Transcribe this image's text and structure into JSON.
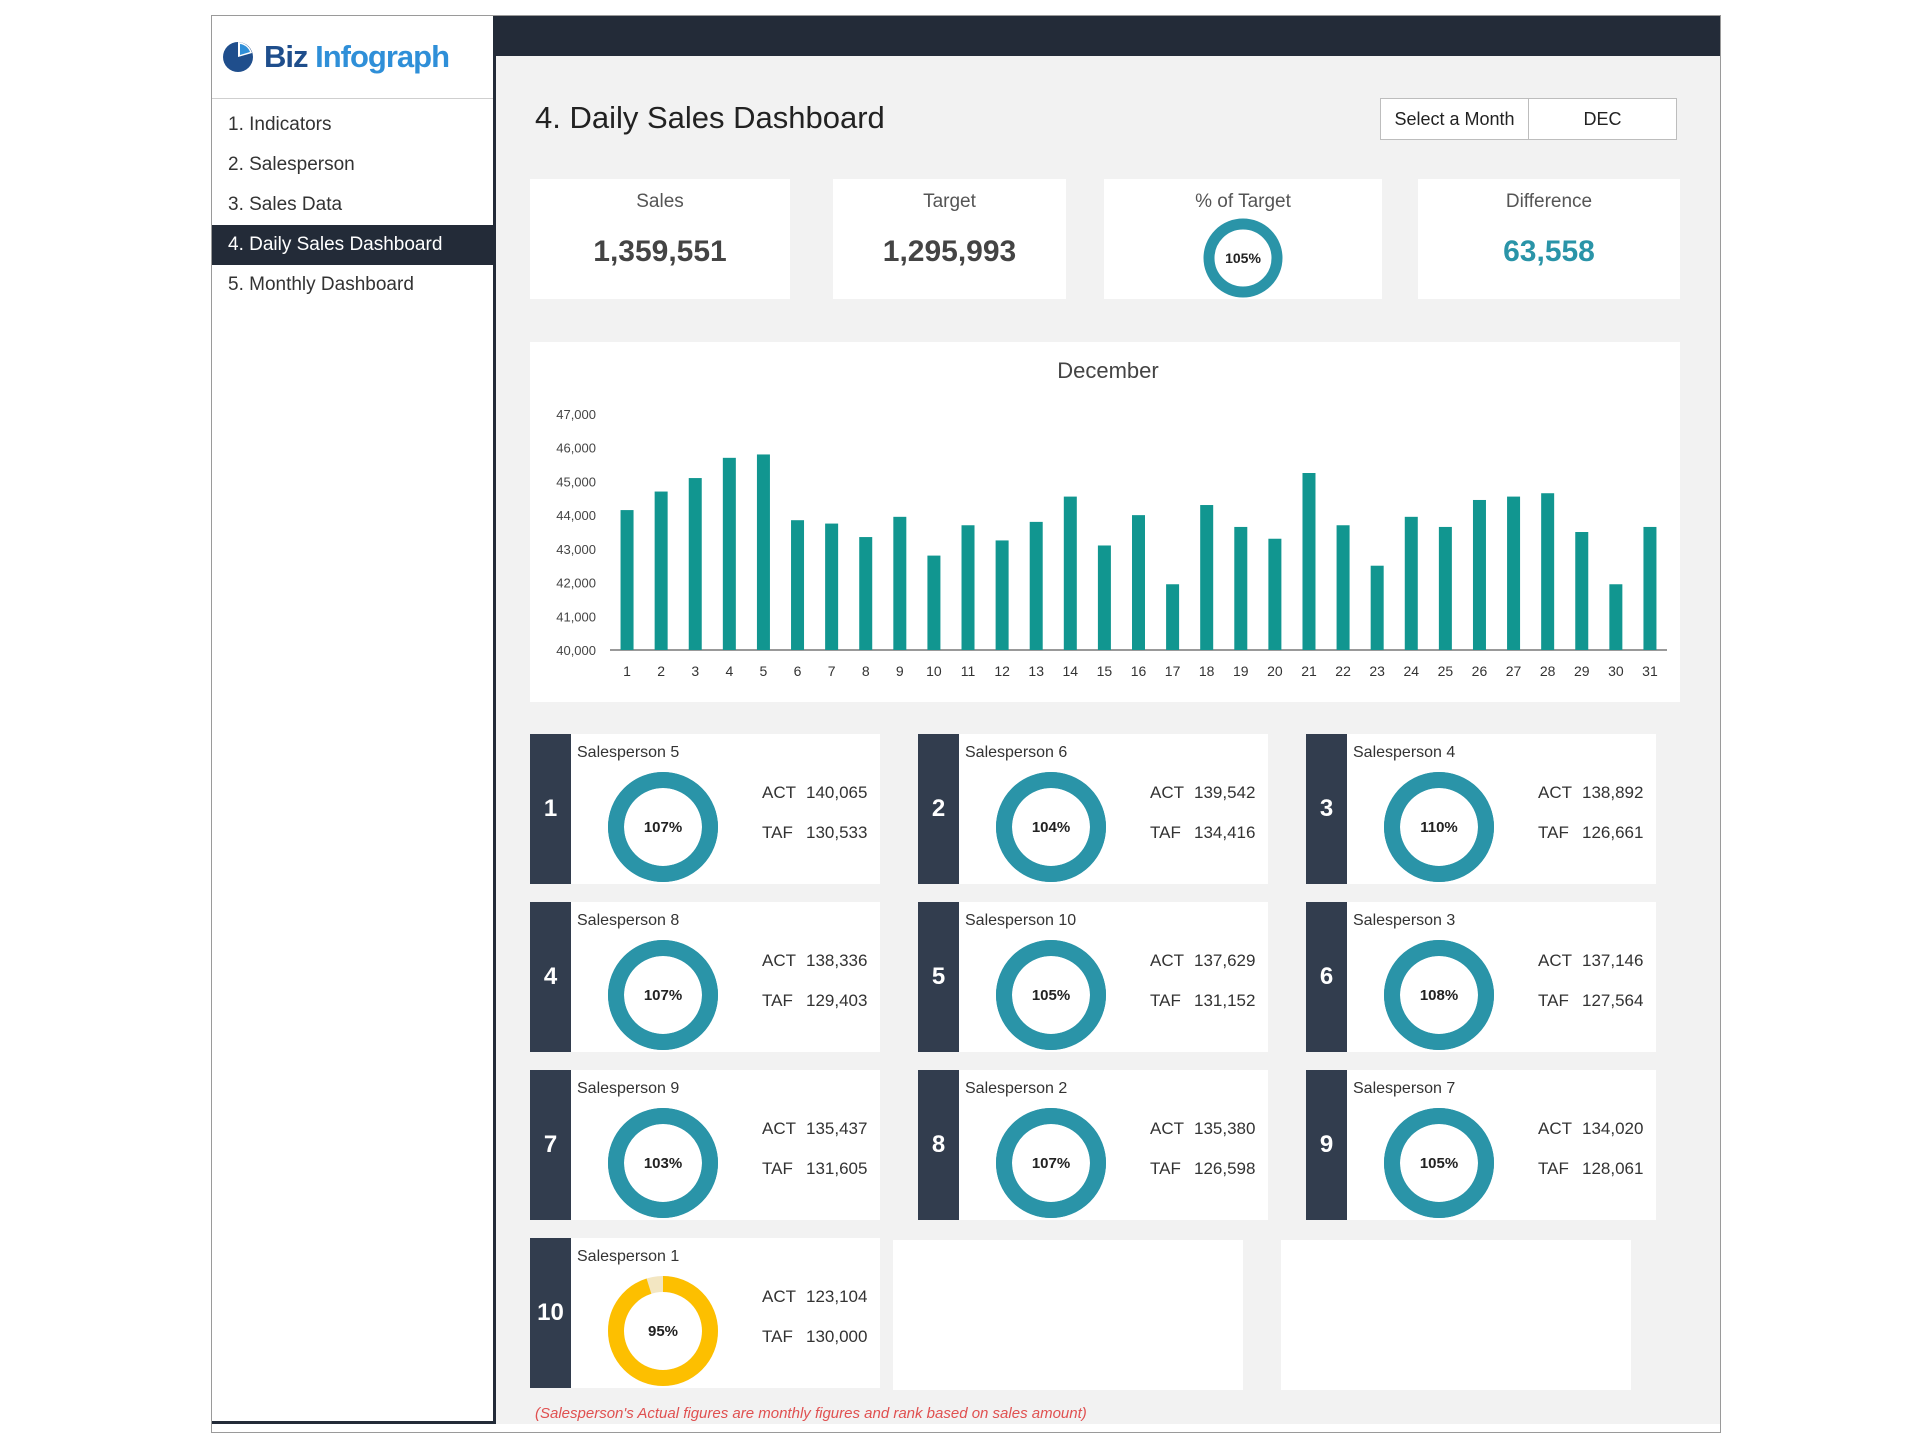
{
  "logo": {
    "brand": "Biz",
    "accent": "Infograph"
  },
  "nav": [
    {
      "label": "1. Indicators"
    },
    {
      "label": "2. Salesperson"
    },
    {
      "label": "3. Sales Data"
    },
    {
      "label": "4. Daily Sales Dashboard",
      "active": true
    },
    {
      "label": "5. Monthly Dashboard"
    }
  ],
  "page": {
    "title": "4. Daily Sales Dashboard"
  },
  "month_select": {
    "label": "Select a Month",
    "value": "DEC"
  },
  "kpis": {
    "sales": {
      "label": "Sales",
      "value": "1,359,551"
    },
    "target": {
      "label": "Target",
      "value": "1,295,993"
    },
    "pct_target": {
      "label": "% of Target",
      "value": "105%",
      "pct": 105
    },
    "difference": {
      "label": "Difference",
      "value": "63,558"
    }
  },
  "colors": {
    "teal": "#2a94a8",
    "bar": "#119690",
    "dark": "#232b38",
    "rank": "#323d4e",
    "yellow": "#fdbf00",
    "track": "#f3e6c2"
  },
  "chart_data": {
    "type": "bar",
    "title": "December",
    "categories": [
      "1",
      "2",
      "3",
      "4",
      "5",
      "6",
      "7",
      "8",
      "9",
      "10",
      "11",
      "12",
      "13",
      "14",
      "15",
      "16",
      "17",
      "18",
      "19",
      "20",
      "21",
      "22",
      "23",
      "24",
      "25",
      "26",
      "27",
      "28",
      "29",
      "30",
      "31"
    ],
    "values": [
      44150,
      44700,
      45100,
      45700,
      45800,
      43850,
      43750,
      43350,
      43950,
      42800,
      43700,
      43250,
      43800,
      44550,
      43100,
      44000,
      41950,
      44300,
      43650,
      43300,
      45250,
      43700,
      42500,
      43950,
      43650,
      44450,
      44550,
      44650,
      43500,
      41950,
      43650
    ],
    "ylim": [
      40000,
      47000
    ],
    "yticks": [
      "40,000",
      "41,000",
      "42,000",
      "43,000",
      "44,000",
      "45,000",
      "46,000",
      "47,000"
    ],
    "xlabel": "",
    "ylabel": "",
    "grid": false
  },
  "salespeople": [
    {
      "rank": "1",
      "name": "Salesperson 5",
      "pct_label": "107%",
      "pct": 107,
      "act_label": "ACT",
      "act": "140,065",
      "taf_label": "TAF",
      "taf": "130,533"
    },
    {
      "rank": "2",
      "name": "Salesperson 6",
      "pct_label": "104%",
      "pct": 104,
      "act_label": "ACT",
      "act": "139,542",
      "taf_label": "TAF",
      "taf": "134,416"
    },
    {
      "rank": "3",
      "name": "Salesperson 4",
      "pct_label": "110%",
      "pct": 110,
      "act_label": "ACT",
      "act": "138,892",
      "taf_label": "TAF",
      "taf": "126,661"
    },
    {
      "rank": "4",
      "name": "Salesperson 8",
      "pct_label": "107%",
      "pct": 107,
      "act_label": "ACT",
      "act": "138,336",
      "taf_label": "TAF",
      "taf": "129,403"
    },
    {
      "rank": "5",
      "name": "Salesperson 10",
      "pct_label": "105%",
      "pct": 105,
      "act_label": "ACT",
      "act": "137,629",
      "taf_label": "TAF",
      "taf": "131,152"
    },
    {
      "rank": "6",
      "name": "Salesperson 3",
      "pct_label": "108%",
      "pct": 108,
      "act_label": "ACT",
      "act": "137,146",
      "taf_label": "TAF",
      "taf": "127,564"
    },
    {
      "rank": "7",
      "name": "Salesperson 9",
      "pct_label": "103%",
      "pct": 103,
      "act_label": "ACT",
      "act": "135,437",
      "taf_label": "TAF",
      "taf": "131,605"
    },
    {
      "rank": "8",
      "name": "Salesperson 2",
      "pct_label": "107%",
      "pct": 107,
      "act_label": "ACT",
      "act": "135,380",
      "taf_label": "TAF",
      "taf": "126,598"
    },
    {
      "rank": "9",
      "name": "Salesperson 7",
      "pct_label": "105%",
      "pct": 105,
      "act_label": "ACT",
      "act": "134,020",
      "taf_label": "TAF",
      "taf": "128,061"
    },
    {
      "rank": "10",
      "name": "Salesperson 1",
      "pct_label": "95%",
      "pct": 95,
      "act_label": "ACT",
      "act": "123,104",
      "taf_label": "TAF",
      "taf": "130,000"
    }
  ],
  "footnote": "(Salesperson's Actual figures are monthly figures and rank based on sales amount)"
}
